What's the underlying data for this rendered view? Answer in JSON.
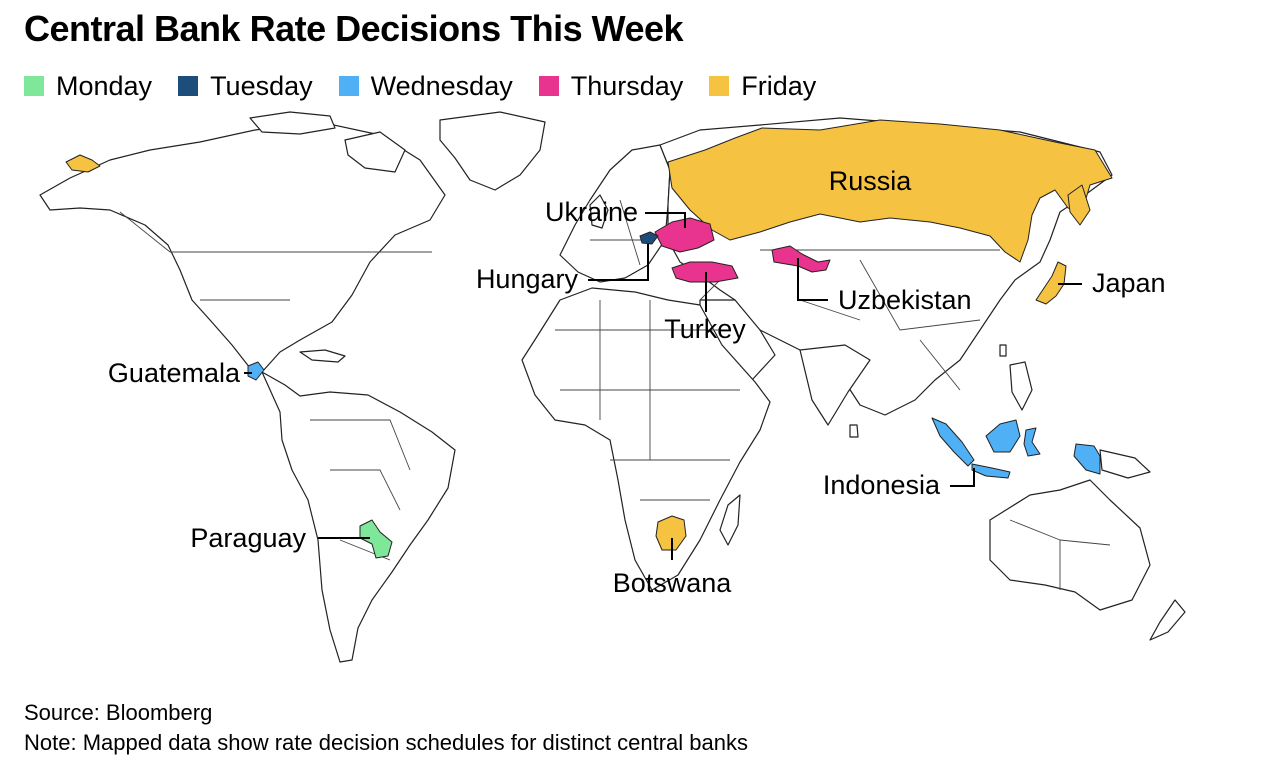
{
  "title": "Central Bank Rate Decisions This Week",
  "legend": [
    {
      "label": "Monday",
      "color": "#7ee79a"
    },
    {
      "label": "Tuesday",
      "color": "#1d4e7b"
    },
    {
      "label": "Wednesday",
      "color": "#4fb0f5"
    },
    {
      "label": "Thursday",
      "color": "#e8348e"
    },
    {
      "label": "Friday",
      "color": "#f5c242"
    }
  ],
  "countries": [
    {
      "name": "Paraguay",
      "day": "Monday"
    },
    {
      "name": "Hungary",
      "day": "Tuesday"
    },
    {
      "name": "Guatemala",
      "day": "Wednesday"
    },
    {
      "name": "Indonesia",
      "day": "Wednesday"
    },
    {
      "name": "Ukraine",
      "day": "Thursday"
    },
    {
      "name": "Turkey",
      "day": "Thursday"
    },
    {
      "name": "Uzbekistan",
      "day": "Thursday"
    },
    {
      "name": "Russia",
      "day": "Friday"
    },
    {
      "name": "Japan",
      "day": "Friday"
    },
    {
      "name": "Botswana",
      "day": "Friday"
    }
  ],
  "footer": {
    "source": "Source: Bloomberg",
    "note": "Note: Mapped data show rate decision schedules for distinct central banks"
  }
}
